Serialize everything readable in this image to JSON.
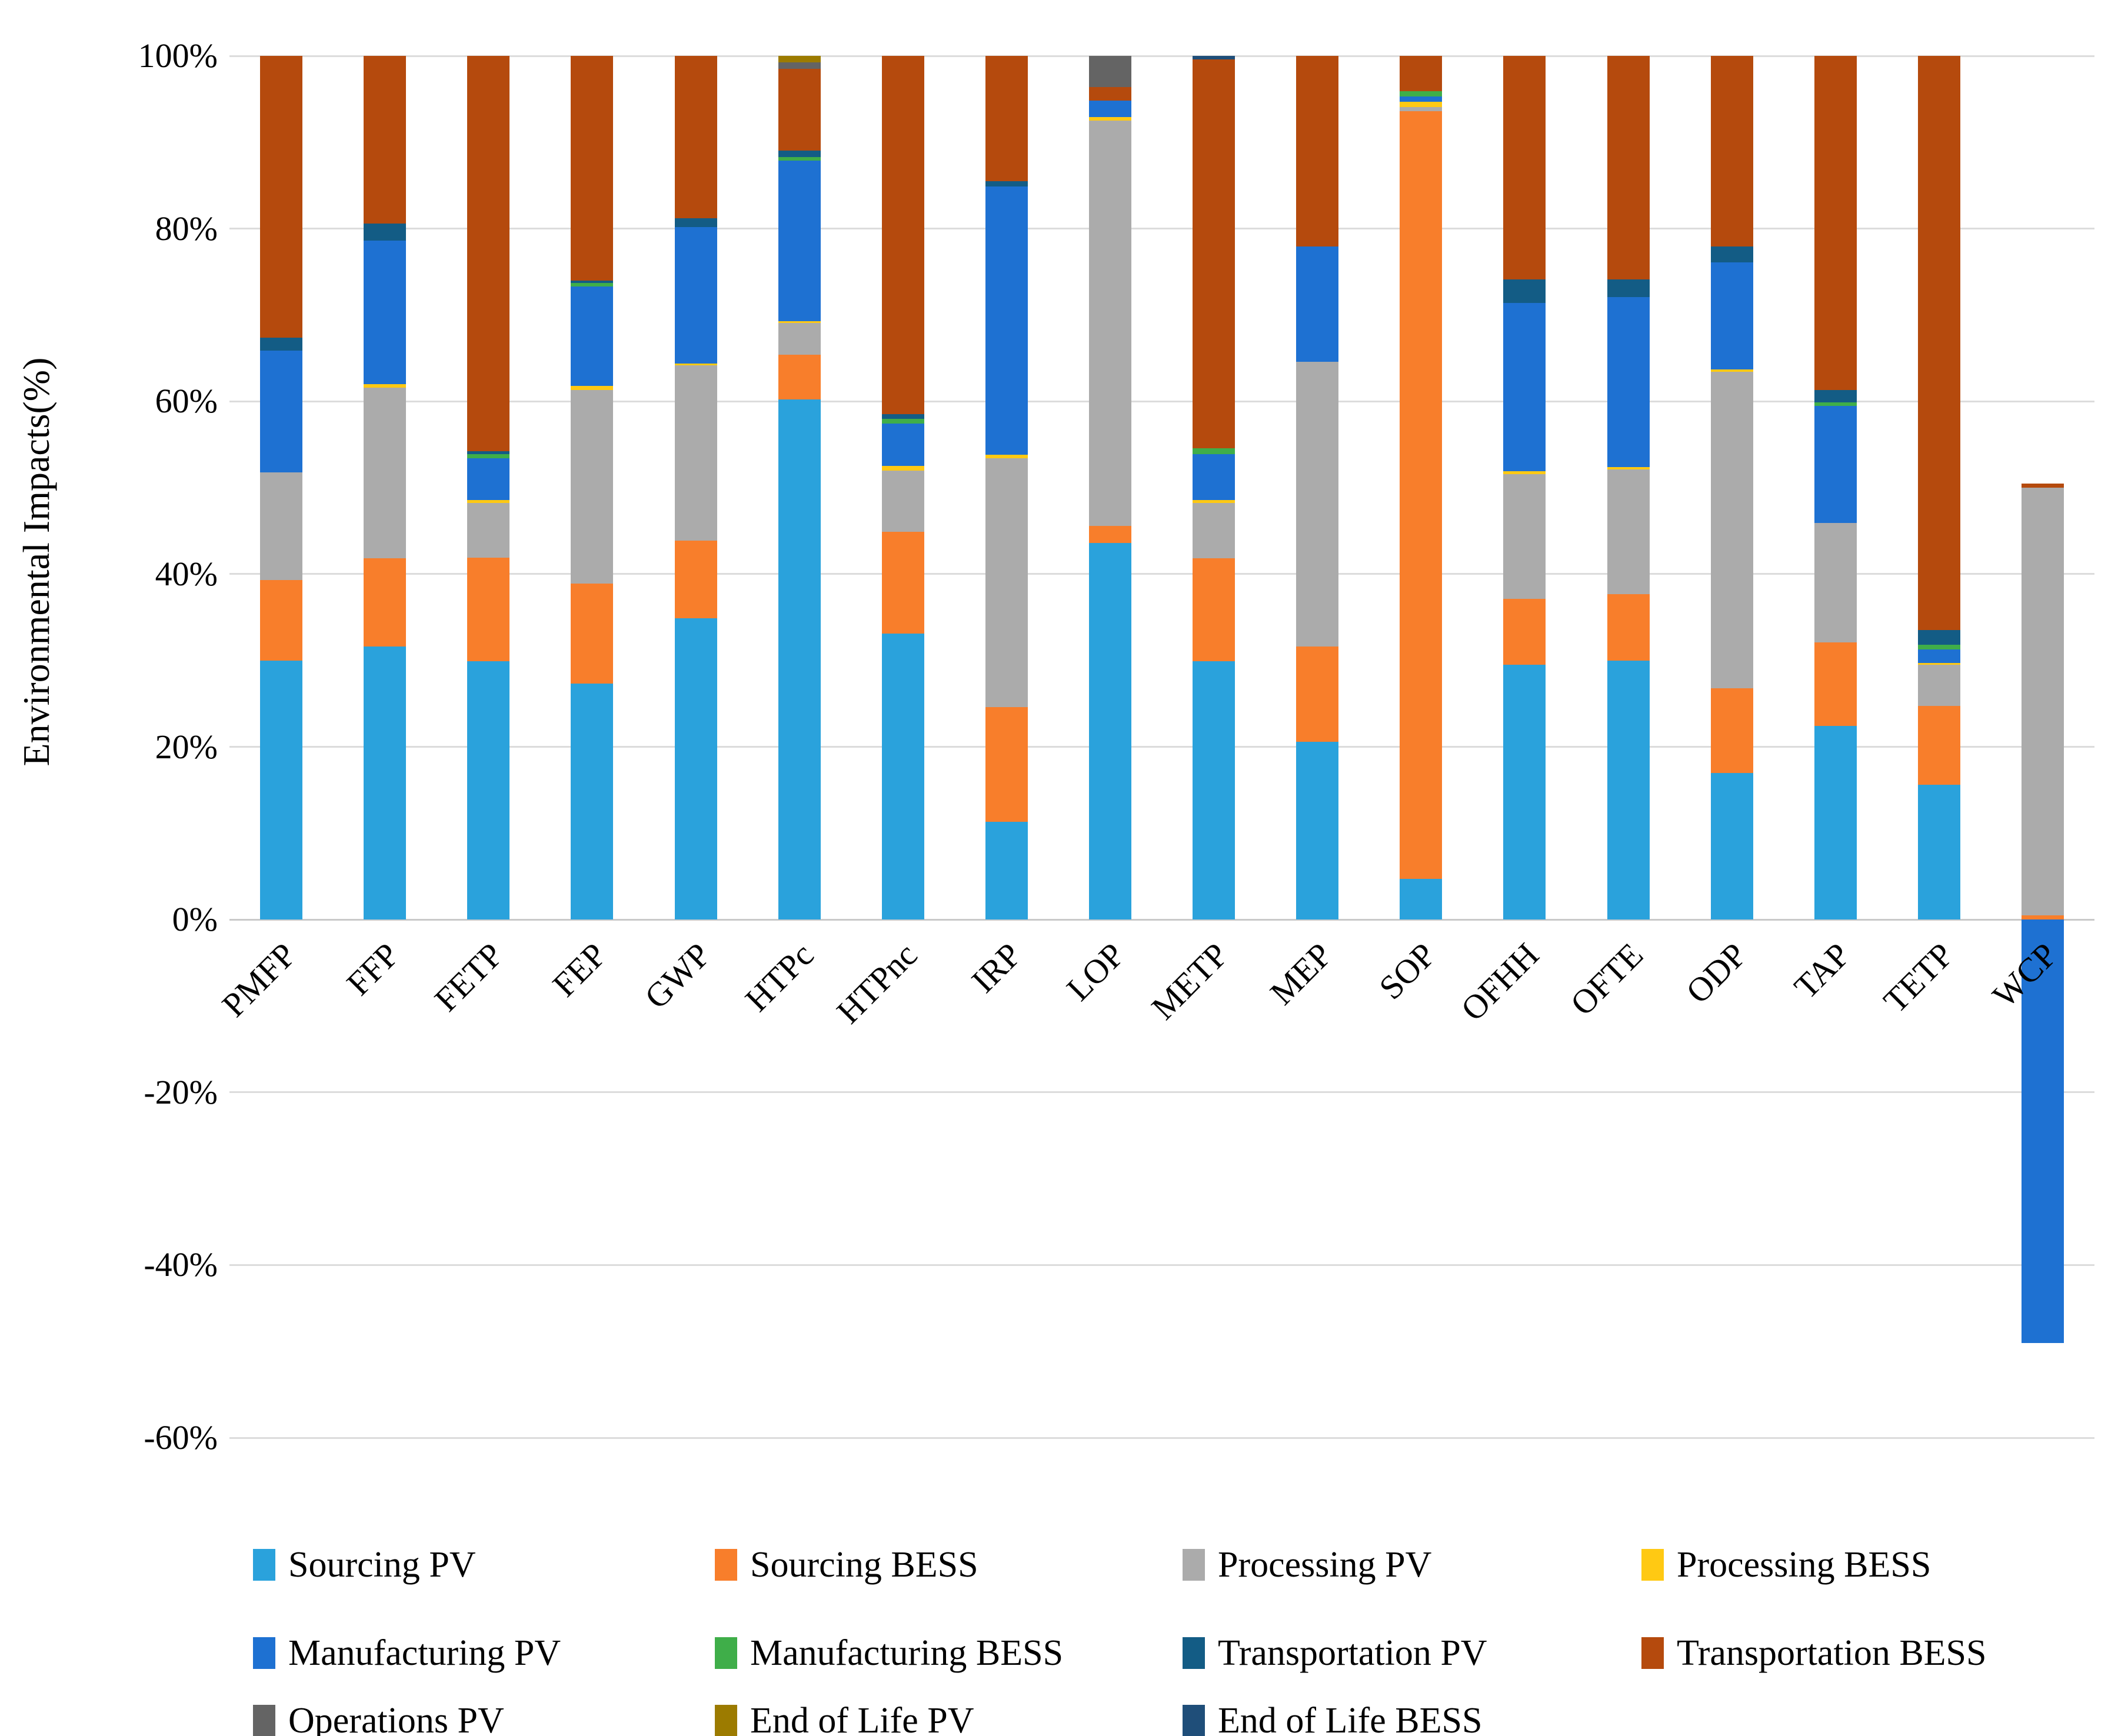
{
  "figure": {
    "background": "#FFFFFF",
    "grid_color": "#DCDCDC",
    "zero_line_color": "#C9C9C9"
  },
  "chart_data": {
    "type": "bar",
    "stacked": true,
    "title": "",
    "xlabel": "",
    "ylabel": "Environmental Impacts(%)",
    "ylim": [
      -60,
      100
    ],
    "ytick_step": 20,
    "ytick_labels": [
      "100%",
      "80%",
      "60%",
      "40%",
      "20%",
      "0%",
      "-20%",
      "-40%",
      "-60%"
    ],
    "grid": true,
    "legend_position": "bottom",
    "categories": [
      "PMFP",
      "FFP",
      "FETP",
      "FEP",
      "GWP",
      "HTPc",
      "HTPnc",
      "IRP",
      "LOP",
      "METP",
      "MEP",
      "SOP",
      "OFHH",
      "OFTE",
      "ODP",
      "TAP",
      "TETP",
      "WCP"
    ],
    "series": [
      {
        "name": "Sourcing PV",
        "color": "#2AA2DC",
        "values": [
          30.0,
          31.6,
          29.9,
          27.3,
          34.9,
          60.2,
          33.1,
          11.3,
          43.6,
          29.9,
          20.6,
          4.7,
          29.5,
          30.0,
          17.0,
          22.4,
          15.6,
          0
        ]
      },
      {
        "name": "Sourcing BESS",
        "color": "#F87E2B",
        "values": [
          9.3,
          10.2,
          12.0,
          11.6,
          9.0,
          5.2,
          11.8,
          13.3,
          2.0,
          11.9,
          11.0,
          88.9,
          7.6,
          7.7,
          9.8,
          9.7,
          9.1,
          0.5
        ]
      },
      {
        "name": "Processing PV",
        "color": "#ABABAB",
        "values": [
          12.5,
          19.8,
          6.3,
          22.4,
          20.3,
          3.7,
          7.1,
          28.8,
          46.9,
          6.4,
          33.0,
          0.5,
          14.5,
          14.4,
          36.6,
          13.8,
          4.8,
          49.5
        ]
      },
      {
        "name": "Processing BESS",
        "color": "#FFC913",
        "values": [
          0,
          0.4,
          0.4,
          0.5,
          0.2,
          0.2,
          0.5,
          0.4,
          0.4,
          0.4,
          0,
          0.6,
          0.3,
          0.3,
          0.3,
          0,
          0.2,
          0
        ]
      },
      {
        "name": "Manufacturing PV",
        "color": "#1E71D2",
        "values": [
          14.1,
          16.6,
          4.8,
          11.5,
          15.8,
          18.6,
          4.9,
          31.1,
          1.9,
          5.3,
          13.3,
          0.6,
          19.5,
          19.7,
          12.4,
          13.6,
          1.6,
          -49.0
        ]
      },
      {
        "name": "Manufacturing BESS",
        "color": "#3FAE49",
        "values": [
          0,
          0,
          0.5,
          0.4,
          0,
          0.4,
          0.6,
          0,
          0,
          0.7,
          0,
          0.6,
          0,
          0,
          0,
          0.4,
          0.5,
          0
        ]
      },
      {
        "name": "Transportation PV",
        "color": "#135C85",
        "values": [
          1.5,
          2.0,
          0.3,
          0.3,
          1.0,
          0.7,
          0.5,
          0.6,
          0,
          0,
          0,
          0,
          2.7,
          2.0,
          1.8,
          1.4,
          1.7,
          0
        ]
      },
      {
        "name": "Transportation BESS",
        "color": "#B54A0D",
        "values": [
          32.6,
          19.4,
          45.8,
          26.0,
          18.8,
          9.5,
          41.5,
          14.5,
          1.6,
          45.0,
          22.1,
          4.1,
          25.9,
          25.9,
          22.1,
          38.7,
          66.5,
          0.5
        ]
      },
      {
        "name": "Operations PV",
        "color": "#646464",
        "values": [
          0,
          0,
          0,
          0,
          0,
          0.75,
          0,
          0,
          3.6,
          0,
          0,
          0,
          0,
          0,
          0,
          0,
          0,
          0
        ]
      },
      {
        "name": "End of Life PV",
        "color": "#9C7B00",
        "values": [
          0,
          0,
          0,
          0,
          0,
          0.75,
          0,
          0,
          0,
          0,
          0,
          0,
          0,
          0,
          0,
          0,
          0,
          0
        ]
      },
      {
        "name": "End of Life BESS",
        "color": "#1F4E79",
        "values": [
          0,
          0,
          0,
          0,
          0,
          0,
          0,
          0,
          0,
          0.4,
          0,
          0,
          0,
          0,
          0,
          0,
          0,
          0
        ]
      }
    ],
    "legend_rows": [
      [
        "Sourcing PV",
        "Sourcing BESS",
        "Processing PV",
        "Processing BESS"
      ],
      [
        "Manufacturing PV",
        "Manufacturing BESS",
        "Transportation PV",
        "Transportation BESS"
      ],
      [
        "Operations PV",
        "End of Life PV",
        "End of Life BESS"
      ]
    ]
  }
}
